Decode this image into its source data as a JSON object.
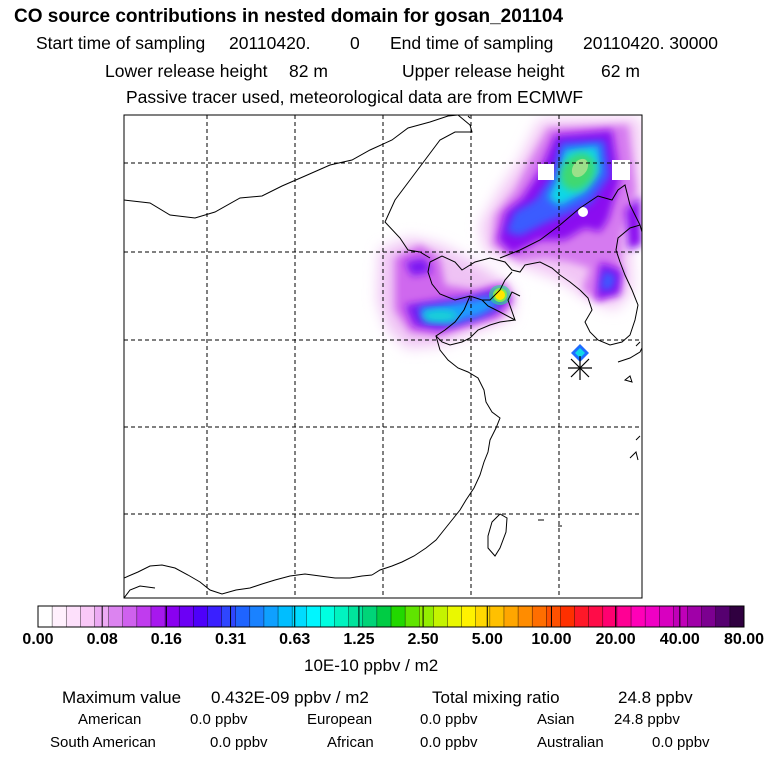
{
  "title": "CO  source contributions in nested domain for gosan_201104",
  "sampling": {
    "start_label": "Start time of sampling",
    "start_value": "20110420.",
    "start_hour": "0",
    "end_label": "End time of sampling",
    "end_value": "20110420. 30000"
  },
  "release": {
    "lower_label": "Lower release height",
    "lower_value": "82 m",
    "upper_label": "Upper release height",
    "upper_value": "62 m"
  },
  "note": "Passive tracer used, meteorological data are from ECMWF",
  "colorbar": {
    "ticks": [
      "0.00",
      "0.08",
      "0.16",
      "0.31",
      "0.63",
      "1.25",
      "2.50",
      "5.00",
      "10.00",
      "20.00",
      "40.00",
      "80.00"
    ],
    "unit": "10E-10 ppbv / m2",
    "colors": [
      "#ffffff",
      "#fff0fd",
      "#fde0fb",
      "#f9c8f7",
      "#ecaaf3",
      "#dc84f0",
      "#cf61ee",
      "#c03cee",
      "#a718ee",
      "#8a00f0",
      "#6c00f5",
      "#4e00fa",
      "#3a20ff",
      "#2f46ff",
      "#1f64ff",
      "#1a82ff",
      "#0fa0ff",
      "#00beff",
      "#00dcff",
      "#00f6ff",
      "#00ffe0",
      "#00f4c0",
      "#00e49c",
      "#00d478",
      "#00cc44",
      "#22d800",
      "#60e400",
      "#94ee00",
      "#c4f400",
      "#eaf800",
      "#fff200",
      "#ffd800",
      "#ffc000",
      "#ffa600",
      "#ff8c00",
      "#ff6e00",
      "#ff5000",
      "#ff3000",
      "#ff1828",
      "#ff0c48",
      "#ff0070",
      "#ff0094",
      "#ff00b8",
      "#f000c4",
      "#d800c0",
      "#c000b8",
      "#a000a8",
      "#7c0090",
      "#560070",
      "#300040"
    ]
  },
  "summary": {
    "max_label": "Maximum value",
    "max_value": "0.432E-09 ppbv / m2",
    "total_label": "Total mixing ratio",
    "total_value": "24.8 ppbv"
  },
  "regions": [
    {
      "name": "American",
      "value": "0.0 ppbv"
    },
    {
      "name": "European",
      "value": "0.0 ppbv"
    },
    {
      "name": "Asian",
      "value": "24.8 ppbv"
    },
    {
      "name": "South American",
      "value": "0.0 ppbv"
    },
    {
      "name": "African",
      "value": "0.0 ppbv"
    },
    {
      "name": "Australian",
      "value": "0.0 ppbv"
    }
  ]
}
